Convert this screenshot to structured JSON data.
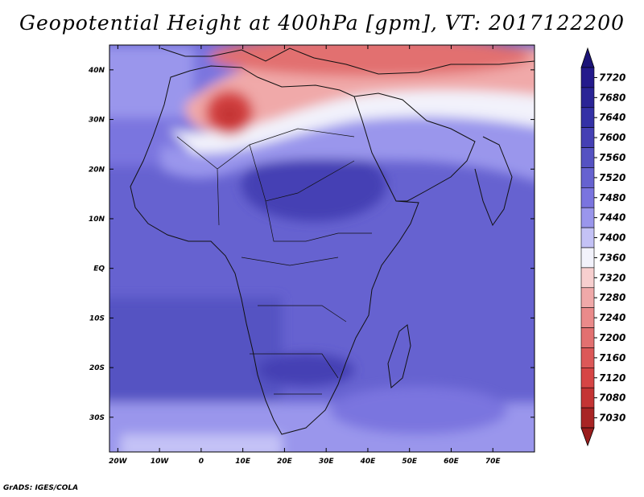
{
  "title": "Geopotential Height at 400hPa [gpm], VT: 2017122200",
  "credit": "GrADS: IGES/COLA",
  "map": {
    "variable": "Geopotential Height",
    "level": "400hPa",
    "units": "gpm",
    "valid_time": "2017122200",
    "lon_range": [
      -22,
      80
    ],
    "lat_range": [
      -37,
      45
    ],
    "lon_ticks": [
      {
        "lon": -20,
        "label": "20W"
      },
      {
        "lon": -10,
        "label": "10W"
      },
      {
        "lon": 0,
        "label": "0"
      },
      {
        "lon": 10,
        "label": "10E"
      },
      {
        "lon": 20,
        "label": "20E"
      },
      {
        "lon": 30,
        "label": "30E"
      },
      {
        "lon": 40,
        "label": "40E"
      },
      {
        "lon": 50,
        "label": "50E"
      },
      {
        "lon": 60,
        "label": "60E"
      },
      {
        "lon": 70,
        "label": "70E"
      }
    ],
    "lat_ticks": [
      {
        "lat": 40,
        "label": "40N"
      },
      {
        "lat": 30,
        "label": "30N"
      },
      {
        "lat": 20,
        "label": "20N"
      },
      {
        "lat": 10,
        "label": "10N"
      },
      {
        "lat": 0,
        "label": "EQ"
      },
      {
        "lat": -10,
        "label": "10S"
      },
      {
        "lat": -20,
        "label": "20S"
      },
      {
        "lat": -30,
        "label": "30S"
      }
    ]
  },
  "colorbar": {
    "levels": [
      {
        "label": "7720",
        "color": "#241a8c"
      },
      {
        "label": "7680",
        "color": "#2a2496"
      },
      {
        "label": "7640",
        "color": "#3431a6"
      },
      {
        "label": "7600",
        "color": "#4540b4"
      },
      {
        "label": "7560",
        "color": "#5552c2"
      },
      {
        "label": "7520",
        "color": "#6662d0"
      },
      {
        "label": "7480",
        "color": "#7a74df"
      },
      {
        "label": "7440",
        "color": "#9a96ec"
      },
      {
        "label": "7400",
        "color": "#c4c2f6"
      },
      {
        "label": "7360",
        "color": "#f2f2fb"
      },
      {
        "label": "7320",
        "color": "#f7cfcf"
      },
      {
        "label": "7280",
        "color": "#f0a9a9"
      },
      {
        "label": "7240",
        "color": "#ea8a8a"
      },
      {
        "label": "7200",
        "color": "#e27070"
      },
      {
        "label": "7160",
        "color": "#dc5858"
      },
      {
        "label": "7120",
        "color": "#d64545"
      },
      {
        "label": "7080",
        "color": "#c43434"
      },
      {
        "label": "7030",
        "color": "#a82424"
      }
    ],
    "top_arrow_color": "#1c1478",
    "bottom_arrow_color": "#9a1c1c"
  }
}
